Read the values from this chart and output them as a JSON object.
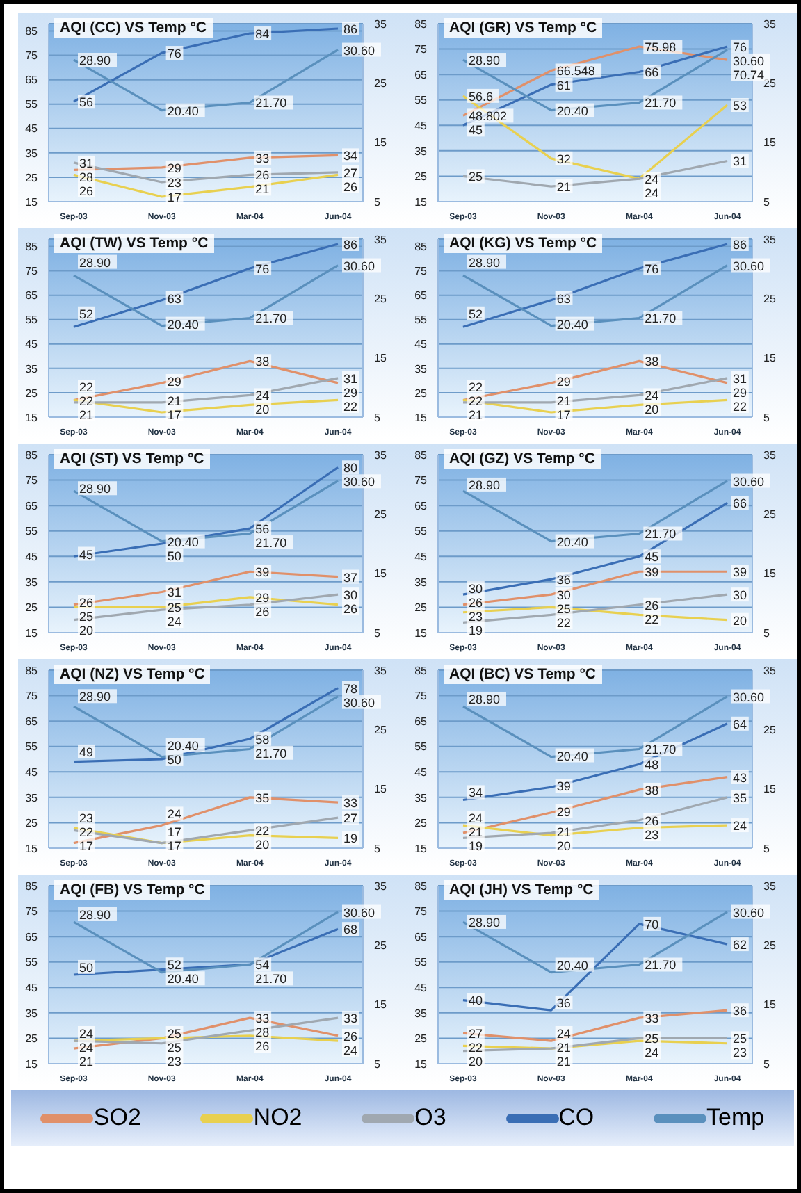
{
  "chart_data": [
    {
      "type": "line",
      "title": "AQI (CC) VS Temp °C",
      "categories": [
        "Sep-03",
        "Nov-03",
        "Mar-04",
        "Jun-04"
      ],
      "series": [
        {
          "name": "SO2",
          "color": "#e0906a",
          "values": [
            28,
            29,
            33,
            34
          ]
        },
        {
          "name": "NO2",
          "color": "#e8d050",
          "values": [
            26,
            17,
            21,
            26
          ]
        },
        {
          "name": "O3",
          "color": "#a0a8b0",
          "values": [
            31,
            23,
            26,
            27
          ]
        },
        {
          "name": "CO",
          "color": "#3a6eb5",
          "values": [
            56,
            76,
            84,
            86
          ]
        },
        {
          "name": "Temp",
          "color": "#5a90bd",
          "axis": "y2",
          "values": [
            28.9,
            20.4,
            21.7,
            30.6
          ],
          "value_labels": [
            "28.90",
            "20.40",
            "21.70",
            "30.60"
          ]
        }
      ],
      "ylim": [
        15,
        88
      ],
      "yticks": [
        15,
        25,
        35,
        45,
        55,
        65,
        75,
        85
      ],
      "y2lim": [
        5,
        35
      ],
      "y2ticks": [
        5,
        15,
        25,
        35
      ],
      "grid": "y",
      "legend": "bottom",
      "data_labels": true
    },
    {
      "type": "line",
      "title": "AQI (GR)  VS Temp °C",
      "categories": [
        "Sep-03",
        "Nov-03",
        "Mar-04",
        "Jun-04"
      ],
      "series": [
        {
          "name": "SO2",
          "color": "#e0906a",
          "values": [
            48.802,
            66.548,
            75.98,
            70.74
          ]
        },
        {
          "name": "NO2",
          "color": "#e8d050",
          "values": [
            56.6,
            32,
            24,
            53
          ]
        },
        {
          "name": "O3",
          "color": "#a0a8b0",
          "values": [
            25,
            21,
            24,
            31
          ]
        },
        {
          "name": "CO",
          "color": "#3a6eb5",
          "values": [
            45,
            61,
            66,
            76
          ]
        },
        {
          "name": "Temp",
          "color": "#5a90bd",
          "axis": "y2",
          "values": [
            28.9,
            20.4,
            21.7,
            30.6
          ],
          "value_labels": [
            "28.90",
            "20.40",
            "21.70",
            "30.60"
          ]
        }
      ],
      "ylim": [
        15,
        85
      ],
      "yticks": [
        15,
        25,
        35,
        45,
        55,
        65,
        75,
        85
      ],
      "y2lim": [
        5,
        35
      ],
      "y2ticks": [
        5,
        15,
        25,
        35
      ],
      "grid": "y",
      "legend": "bottom",
      "data_labels": true
    },
    {
      "type": "line",
      "title": "AQI (TW) VS Temp °C",
      "categories": [
        "Sep-03",
        "Nov-03",
        "Mar-04",
        "Jun-04"
      ],
      "series": [
        {
          "name": "SO2",
          "color": "#e0906a",
          "values": [
            22,
            29,
            38,
            29
          ]
        },
        {
          "name": "NO2",
          "color": "#e8d050",
          "values": [
            22,
            17,
            20,
            22
          ]
        },
        {
          "name": "O3",
          "color": "#a0a8b0",
          "values": [
            21,
            21,
            24,
            31
          ]
        },
        {
          "name": "CO",
          "color": "#3a6eb5",
          "values": [
            52,
            63,
            76,
            86
          ]
        },
        {
          "name": "Temp",
          "color": "#5a90bd",
          "axis": "y2",
          "values": [
            28.9,
            20.4,
            21.7,
            30.6
          ],
          "value_labels": [
            "28.90",
            "20.40",
            "21.70",
            "30.60"
          ]
        }
      ],
      "ylim": [
        15,
        88
      ],
      "yticks": [
        15,
        25,
        35,
        45,
        55,
        65,
        75,
        85
      ],
      "y2lim": [
        5,
        35
      ],
      "y2ticks": [
        5,
        15,
        25,
        35
      ],
      "grid": "y",
      "legend": "bottom",
      "data_labels": true
    },
    {
      "type": "line",
      "title": "AQI (KG) VS Temp °C",
      "categories": [
        "Sep-03",
        "Nov-03",
        "Mar-04",
        "Jun-04"
      ],
      "series": [
        {
          "name": "SO2",
          "color": "#e0906a",
          "values": [
            22,
            29,
            38,
            29
          ]
        },
        {
          "name": "NO2",
          "color": "#e8d050",
          "values": [
            22,
            17,
            20,
            22
          ]
        },
        {
          "name": "O3",
          "color": "#a0a8b0",
          "values": [
            21,
            21,
            24,
            31
          ]
        },
        {
          "name": "CO",
          "color": "#3a6eb5",
          "values": [
            52,
            63,
            76,
            86
          ]
        },
        {
          "name": "Temp",
          "color": "#5a90bd",
          "axis": "y2",
          "values": [
            28.9,
            20.4,
            21.7,
            30.6
          ],
          "value_labels": [
            "28.90",
            "20.40",
            "21.70",
            "30.60"
          ]
        }
      ],
      "ylim": [
        15,
        88
      ],
      "yticks": [
        15,
        25,
        35,
        45,
        55,
        65,
        75,
        85
      ],
      "y2lim": [
        5,
        35
      ],
      "y2ticks": [
        5,
        15,
        25,
        35
      ],
      "grid": "y",
      "legend": "bottom",
      "data_labels": true
    },
    {
      "type": "line",
      "title": "AQI (ST) VS Temp °C",
      "categories": [
        "Sep-03",
        "Nov-03",
        "Mar-04",
        "Jun-04"
      ],
      "series": [
        {
          "name": "SO2",
          "color": "#e0906a",
          "values": [
            26,
            31,
            39,
            37
          ]
        },
        {
          "name": "NO2",
          "color": "#e8d050",
          "values": [
            25,
            25,
            29,
            26
          ]
        },
        {
          "name": "O3",
          "color": "#a0a8b0",
          "values": [
            20,
            24,
            26,
            30
          ]
        },
        {
          "name": "CO",
          "color": "#3a6eb5",
          "values": [
            45,
            50,
            56,
            80
          ]
        },
        {
          "name": "Temp",
          "color": "#5a90bd",
          "axis": "y2",
          "values": [
            28.9,
            20.4,
            21.7,
            30.6
          ],
          "value_labels": [
            "28.90",
            "20.40",
            "21.70",
            "30.60"
          ]
        }
      ],
      "ylim": [
        15,
        85
      ],
      "yticks": [
        15,
        25,
        35,
        45,
        55,
        65,
        75,
        85
      ],
      "y2lim": [
        5,
        35
      ],
      "y2ticks": [
        5,
        15,
        25,
        35
      ],
      "grid": "y",
      "legend": "bottom",
      "data_labels": true
    },
    {
      "type": "line",
      "title": "AQI (GZ) VS Temp °C",
      "categories": [
        "Sep-03",
        "Nov-03",
        "Mar-04",
        "Jun-04"
      ],
      "series": [
        {
          "name": "SO2",
          "color": "#e0906a",
          "values": [
            26,
            30,
            39,
            39
          ]
        },
        {
          "name": "NO2",
          "color": "#e8d050",
          "values": [
            23,
            25,
            22,
            20
          ]
        },
        {
          "name": "O3",
          "color": "#a0a8b0",
          "values": [
            19,
            22,
            26,
            30
          ]
        },
        {
          "name": "CO",
          "color": "#3a6eb5",
          "values": [
            30,
            36,
            45,
            66
          ]
        },
        {
          "name": "Temp",
          "color": "#5a90bd",
          "axis": "y2",
          "values": [
            28.9,
            20.4,
            21.7,
            30.6
          ],
          "value_labels": [
            "28.90",
            "20.40",
            "21.70",
            "30.60"
          ]
        }
      ],
      "ylim": [
        15,
        85
      ],
      "yticks": [
        15,
        25,
        35,
        45,
        55,
        65,
        75,
        85
      ],
      "y2lim": [
        5,
        35
      ],
      "y2ticks": [
        5,
        15,
        25,
        35
      ],
      "grid": "y",
      "legend": "bottom",
      "data_labels": true
    },
    {
      "type": "line",
      "title": "AQI (NZ) VS Temp °C",
      "categories": [
        "Sep-03",
        "Nov-03",
        "Mar-04",
        "Jun-04"
      ],
      "series": [
        {
          "name": "SO2",
          "color": "#e0906a",
          "values": [
            17,
            24,
            35,
            33
          ]
        },
        {
          "name": "NO2",
          "color": "#e8d050",
          "values": [
            23,
            17,
            20,
            19
          ]
        },
        {
          "name": "O3",
          "color": "#a0a8b0",
          "values": [
            22,
            17,
            22,
            27
          ]
        },
        {
          "name": "CO",
          "color": "#3a6eb5",
          "values": [
            49,
            50,
            58,
            78
          ]
        },
        {
          "name": "Temp",
          "color": "#5a90bd",
          "axis": "y2",
          "values": [
            28.9,
            20.4,
            21.7,
            30.6
          ],
          "value_labels": [
            "28.90",
            "20.40",
            "21.70",
            "30.60"
          ]
        }
      ],
      "ylim": [
        15,
        85
      ],
      "yticks": [
        15,
        25,
        35,
        45,
        55,
        65,
        75,
        85
      ],
      "y2lim": [
        5,
        35
      ],
      "y2ticks": [
        5,
        15,
        25,
        35
      ],
      "grid": "y",
      "legend": "bottom",
      "data_labels": true
    },
    {
      "type": "line",
      "title": "AQI (BC) VS Temp °C",
      "categories": [
        "Sep-03",
        "Nov-03",
        "Mar-04",
        "Jun-04"
      ],
      "series": [
        {
          "name": "SO2",
          "color": "#e0906a",
          "values": [
            21,
            29,
            38,
            43
          ]
        },
        {
          "name": "NO2",
          "color": "#e8d050",
          "values": [
            24,
            20,
            23,
            24
          ]
        },
        {
          "name": "O3",
          "color": "#a0a8b0",
          "values": [
            19,
            21,
            26,
            35
          ]
        },
        {
          "name": "CO",
          "color": "#3a6eb5",
          "values": [
            34,
            39,
            48,
            64
          ]
        },
        {
          "name": "Temp",
          "color": "#5a90bd",
          "axis": "y2",
          "values": [
            28.9,
            20.4,
            21.7,
            30.6
          ],
          "value_labels": [
            "28.90",
            "20.40",
            "21.70",
            "30.60"
          ]
        }
      ],
      "ylim": [
        15,
        85
      ],
      "yticks": [
        15,
        25,
        35,
        45,
        55,
        65,
        75,
        85
      ],
      "y2lim": [
        5,
        35
      ],
      "y2ticks": [
        5,
        15,
        25,
        35
      ],
      "grid": "y",
      "legend": "bottom",
      "data_labels": true
    },
    {
      "type": "line",
      "title": "AQI (FB) VS Temp °C",
      "categories": [
        "Sep-03",
        "Nov-03",
        "Mar-04",
        "Jun-04"
      ],
      "series": [
        {
          "name": "SO2",
          "color": "#e0906a",
          "values": [
            21,
            25,
            33,
            26
          ]
        },
        {
          "name": "NO2",
          "color": "#e8d050",
          "values": [
            24,
            25,
            26,
            24
          ]
        },
        {
          "name": "O3",
          "color": "#a0a8b0",
          "values": [
            24,
            23,
            28,
            33
          ]
        },
        {
          "name": "CO",
          "color": "#3a6eb5",
          "values": [
            50,
            52,
            54,
            68
          ]
        },
        {
          "name": "Temp",
          "color": "#5a90bd",
          "axis": "y2",
          "values": [
            28.9,
            20.4,
            21.7,
            30.6
          ],
          "value_labels": [
            "28.90",
            "20.40",
            "21.70",
            "30.60"
          ]
        }
      ],
      "ylim": [
        15,
        85
      ],
      "yticks": [
        15,
        25,
        35,
        45,
        55,
        65,
        75,
        85
      ],
      "y2lim": [
        5,
        35
      ],
      "y2ticks": [
        5,
        15,
        25,
        35
      ],
      "grid": "y",
      "legend": "bottom",
      "data_labels": true
    },
    {
      "type": "line",
      "title": "AQI (JH) VS Temp °C",
      "categories": [
        "Sep-03",
        "Nov-03",
        "Mar-04",
        "Jun-04"
      ],
      "series": [
        {
          "name": "SO2",
          "color": "#e0906a",
          "values": [
            27,
            24,
            33,
            36
          ]
        },
        {
          "name": "NO2",
          "color": "#e8d050",
          "values": [
            22,
            21,
            24,
            23
          ]
        },
        {
          "name": "O3",
          "color": "#a0a8b0",
          "values": [
            20,
            21,
            25,
            25
          ]
        },
        {
          "name": "CO",
          "color": "#3a6eb5",
          "values": [
            40,
            36,
            70,
            62
          ]
        },
        {
          "name": "Temp",
          "color": "#5a90bd",
          "axis": "y2",
          "values": [
            28.9,
            20.4,
            21.7,
            30.6
          ],
          "value_labels": [
            "28.90",
            "20.40",
            "21.70",
            "30.60"
          ]
        }
      ],
      "ylim": [
        15,
        85
      ],
      "yticks": [
        15,
        25,
        35,
        45,
        55,
        65,
        75,
        85
      ],
      "y2lim": [
        5,
        35
      ],
      "y2ticks": [
        5,
        15,
        25,
        35
      ],
      "grid": "y",
      "legend": "bottom",
      "data_labels": true
    }
  ]
}
